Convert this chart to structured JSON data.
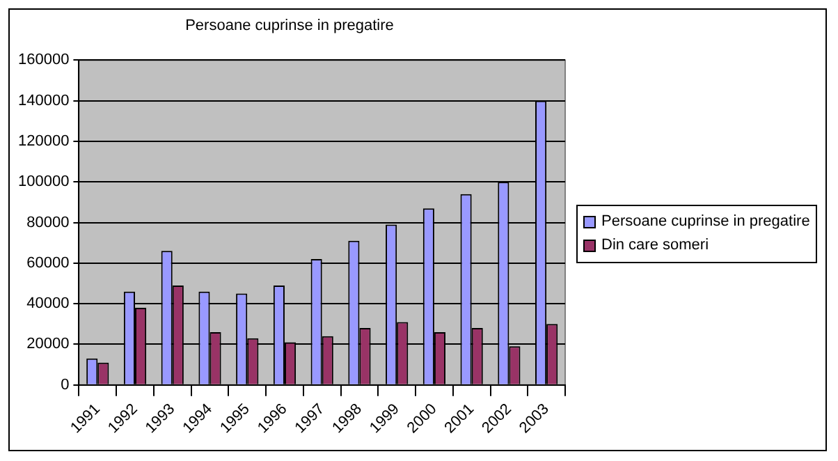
{
  "chart_data": {
    "type": "bar",
    "title": "Persoane cuprinse in pregatire",
    "categories": [
      "1991",
      "1992",
      "1993",
      "1994",
      "1995",
      "1996",
      "1997",
      "1998",
      "1999",
      "2000",
      "2001",
      "2002",
      "2003"
    ],
    "series": [
      {
        "name": "Persoane cuprinse in pregatire",
        "color": "#9999ff",
        "values": [
          13000,
          46000,
          66000,
          46000,
          45000,
          49000,
          62000,
          71000,
          79000,
          87000,
          94000,
          100000,
          140000
        ]
      },
      {
        "name": "Din care someri",
        "color": "#993366",
        "values": [
          11000,
          38000,
          49000,
          26000,
          23000,
          21000,
          24000,
          28000,
          31000,
          26000,
          28000,
          19000,
          30000
        ]
      }
    ],
    "ylim": [
      0,
      160000
    ],
    "yticks": [
      0,
      20000,
      40000,
      60000,
      80000,
      100000,
      120000,
      140000,
      160000
    ],
    "grid": "y",
    "legend": "right"
  }
}
